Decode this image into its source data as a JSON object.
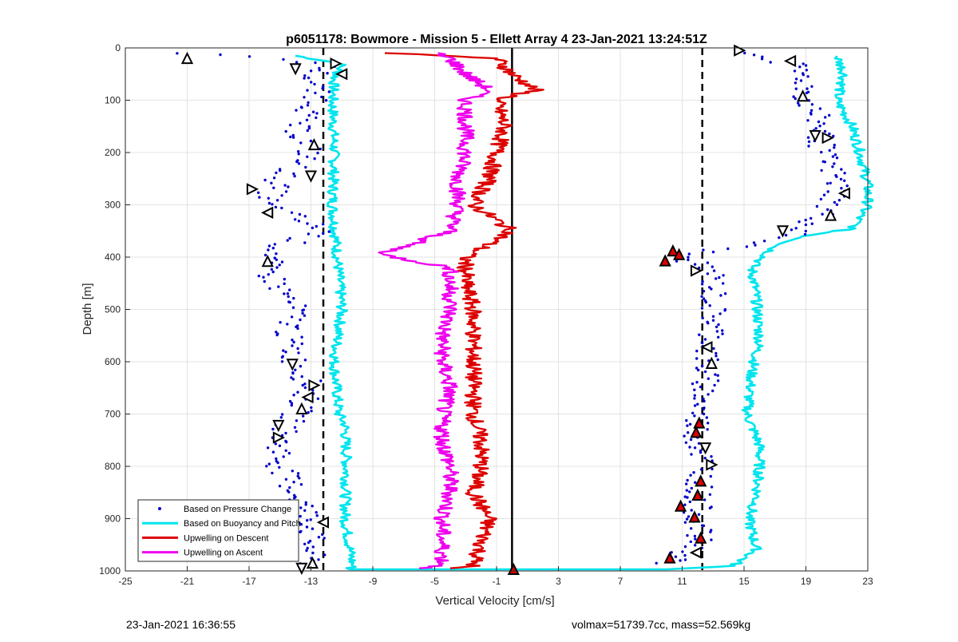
{
  "footer": {
    "timestamp": "23-Jan-2021 16:36:55",
    "volmax_mass": "volmax=51739.7cc, mass=52.569kg"
  },
  "chart_data": {
    "type": "line",
    "title": "p6051178: Bowmore - Mission 5 - Ellett Array 4 23-Jan-2021 13:24:51Z",
    "xlabel": "Vertical Velocity [cm/s]",
    "ylabel": "Depth [m]",
    "xlim": [
      -25,
      23
    ],
    "ylim": [
      1000,
      0
    ],
    "y_reversed": true,
    "grid": true,
    "x_ticks": [
      -25,
      -21,
      -17,
      -13,
      -9,
      -5,
      -1,
      3,
      7,
      11,
      15,
      19,
      23
    ],
    "y_ticks": [
      0,
      100,
      200,
      300,
      400,
      500,
      600,
      700,
      800,
      900,
      1000
    ],
    "legend": {
      "placement": "bottom-left",
      "entries": [
        "Based on Pressure Change",
        "Based on Buoyancy and Pitch",
        "Upwelling on Descent",
        "Upwelling on Ascent"
      ]
    },
    "reference_lines": [
      {
        "style": "dashed",
        "color": "#000000",
        "x": -12.2
      },
      {
        "style": "dashed",
        "color": "#000000",
        "x": 12.3
      },
      {
        "style": "solid",
        "color": "#000000",
        "x": 0
      }
    ],
    "series": [
      {
        "name": "Based on Pressure Change",
        "style": "points",
        "color": "#0000cc",
        "groups": [
          {
            "depth": [
              10,
              30,
              60,
              100,
              150,
              200,
              250,
              300,
              350,
              380,
              420,
              460,
              500,
              550,
              600,
              650,
              700,
              750,
              800,
              850,
              900,
              950,
              990
            ],
            "velocity": [
              -21,
              -12,
              -13,
              -12.5,
              -14,
              -13,
              -15,
              -16,
              -12,
              -15,
              -16,
              -15,
              -14,
              -14.5,
              -14,
              -13,
              -14,
              -15,
              -15,
              -14,
              -13,
              -13,
              -13
            ]
          },
          {
            "depth": [
              10,
              30,
              60,
              100,
              150,
              200,
              250,
              280,
              320,
              360,
              400,
              430,
              460,
              500,
              550,
              600,
              650,
              700,
              750,
              800,
              850,
              900,
              950,
              990
            ],
            "velocity": [
              15,
              18,
              19,
              19,
              20,
              20,
              21,
              21,
              20,
              18,
              11,
              13,
              13,
              13,
              13,
              12.5,
              12.5,
              12,
              12,
              12.5,
              12,
              12,
              12,
              10
            ]
          }
        ],
        "markers": [
          {
            "depth": 20,
            "velocity": -21
          },
          {
            "depth": 40,
            "velocity": -14
          },
          {
            "depth": 30,
            "velocity": -11.4
          },
          {
            "depth": 50,
            "velocity": -11
          },
          {
            "depth": 185,
            "velocity": -12.8
          },
          {
            "depth": 245,
            "velocity": -13
          },
          {
            "depth": 270,
            "velocity": -16.8
          },
          {
            "depth": 315,
            "velocity": -15.8
          },
          {
            "depth": 408,
            "velocity": -15.8
          },
          {
            "depth": 605,
            "velocity": -14.2
          },
          {
            "depth": 645,
            "velocity": -12.8
          },
          {
            "depth": 668,
            "velocity": -13.2
          },
          {
            "depth": 690,
            "velocity": -13.6
          },
          {
            "depth": 722,
            "velocity": -15.1
          },
          {
            "depth": 745,
            "velocity": -15.1
          },
          {
            "depth": 907,
            "velocity": -12.2
          },
          {
            "depth": 985,
            "velocity": -12.9
          },
          {
            "depth": 995,
            "velocity": -13.6
          },
          {
            "depth": 5,
            "velocity": 14.7
          },
          {
            "depth": 25,
            "velocity": 18
          },
          {
            "depth": 92,
            "velocity": 18.8
          },
          {
            "depth": 168,
            "velocity": 19.6
          },
          {
            "depth": 172,
            "velocity": 20.4
          },
          {
            "depth": 278,
            "velocity": 21.5
          },
          {
            "depth": 320,
            "velocity": 20.6
          },
          {
            "depth": 350,
            "velocity": 17.5
          },
          {
            "depth": 426,
            "velocity": 11.9
          },
          {
            "depth": 572,
            "velocity": 12.6
          },
          {
            "depth": 603,
            "velocity": 12.9
          },
          {
            "depth": 765,
            "velocity": 12.5
          },
          {
            "depth": 797,
            "velocity": 12.9
          },
          {
            "depth": 965,
            "velocity": 11.9
          }
        ]
      },
      {
        "name": "Based on Buoyancy and Pitch",
        "style": "line",
        "color": "#00e5ee",
        "segments": [
          {
            "depth": [
              15,
              30,
              60,
              100,
              200,
              300,
              400,
              500,
              600,
              700,
              720,
              800,
              900,
              990,
              997
            ],
            "velocity": [
              -14,
              -11,
              -11.5,
              -11.6,
              -11.5,
              -11.6,
              -11.3,
              -11,
              -11.5,
              -11.2,
              -10.8,
              -10.7,
              -10.8,
              -10.3,
              -10.5
            ]
          },
          {
            "depth": [
              15,
              50,
              100,
              150,
              200,
              260,
              300,
              345,
              360,
              380,
              420,
              480,
              560,
              620,
              700,
              760,
              800,
              860,
              900,
              960,
              990,
              997
            ],
            "velocity": [
              21,
              21.5,
              21,
              22,
              22.5,
              23,
              23,
              22,
              19,
              17,
              15.5,
              15.8,
              16,
              15.5,
              15.2,
              16,
              16,
              15.8,
              15.3,
              15.8,
              14.3,
              10
            ]
          },
          {
            "depth": [
              997,
              997
            ],
            "velocity": [
              -10.5,
              10
            ]
          }
        ]
      },
      {
        "name": "Upwelling on Descent",
        "style": "line",
        "color": "#dd0000",
        "depth": [
          10,
          20,
          50,
          80,
          100,
          150,
          200,
          250,
          300,
          350,
          400,
          450,
          500,
          550,
          600,
          650,
          700,
          750,
          800,
          850,
          900,
          950,
          990,
          995
        ],
        "velocity": [
          -8,
          -1,
          0,
          1.5,
          -1,
          -0.5,
          -1,
          -1.5,
          -2.5,
          0,
          -3,
          -3,
          -2.5,
          -2.5,
          -2.5,
          -2.5,
          -2.5,
          -2,
          -2,
          -2.5,
          -1.5,
          -2,
          -2.5,
          -4
        ]
      },
      {
        "name": "Upwelling on Ascent",
        "style": "line",
        "color": "#ee00ee",
        "depth": [
          10,
          20,
          50,
          80,
          100,
          150,
          200,
          250,
          300,
          350,
          395,
          420,
          450,
          500,
          550,
          600,
          650,
          700,
          750,
          800,
          850,
          900,
          950,
          990,
          995
        ],
        "velocity": [
          -5,
          -4,
          -3,
          -1.5,
          -3,
          -3,
          -3,
          -3.5,
          -3.5,
          -4,
          -8.5,
          -4,
          -4,
          -4,
          -4.5,
          -4.5,
          -4,
          -4.5,
          -4.5,
          -4,
          -4,
          -4.5,
          -4.5,
          -4.5,
          -6
        ]
      }
    ],
    "red_markers": [
      {
        "depth": 388,
        "velocity": 10.4
      },
      {
        "depth": 395,
        "velocity": 10.8
      },
      {
        "depth": 407,
        "velocity": 9.9
      },
      {
        "depth": 717,
        "velocity": 12.1
      },
      {
        "depth": 735,
        "velocity": 11.9
      },
      {
        "depth": 828,
        "velocity": 12.2
      },
      {
        "depth": 855,
        "velocity": 12
      },
      {
        "depth": 876,
        "velocity": 10.9
      },
      {
        "depth": 897,
        "velocity": 11.8
      },
      {
        "depth": 937,
        "velocity": 12.2
      },
      {
        "depth": 975,
        "velocity": 10.2
      },
      {
        "depth": 997,
        "velocity": 0.1
      }
    ]
  }
}
